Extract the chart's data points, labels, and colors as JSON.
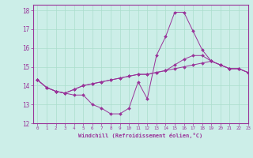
{
  "xlabel": "Windchill (Refroidissement éolien,°C)",
  "xlim": [
    -0.5,
    23
  ],
  "ylim": [
    12,
    18.3
  ],
  "yticks": [
    12,
    13,
    14,
    15,
    16,
    17,
    18
  ],
  "xticks": [
    0,
    1,
    2,
    3,
    4,
    5,
    6,
    7,
    8,
    9,
    10,
    11,
    12,
    13,
    14,
    15,
    16,
    17,
    18,
    19,
    20,
    21,
    22,
    23
  ],
  "bg_color": "#cceee8",
  "grid_color": "#aaddcc",
  "line_color": "#993399",
  "series": [
    [
      14.3,
      13.9,
      13.7,
      13.6,
      13.5,
      13.5,
      13.0,
      12.8,
      12.5,
      12.5,
      12.8,
      14.2,
      13.3,
      15.6,
      16.6,
      17.9,
      17.9,
      16.9,
      15.9,
      15.3,
      15.1,
      14.9,
      14.9,
      14.7
    ],
    [
      14.3,
      13.9,
      13.7,
      13.6,
      13.8,
      14.0,
      14.1,
      14.2,
      14.3,
      14.4,
      14.5,
      14.6,
      14.6,
      14.7,
      14.8,
      14.9,
      15.0,
      15.1,
      15.2,
      15.3,
      15.1,
      14.9,
      14.9,
      14.7
    ],
    [
      14.3,
      13.9,
      13.7,
      13.6,
      13.8,
      14.0,
      14.1,
      14.2,
      14.3,
      14.4,
      14.5,
      14.6,
      14.6,
      14.7,
      14.8,
      15.1,
      15.4,
      15.6,
      15.6,
      15.3,
      15.1,
      14.9,
      14.9,
      14.7
    ]
  ]
}
